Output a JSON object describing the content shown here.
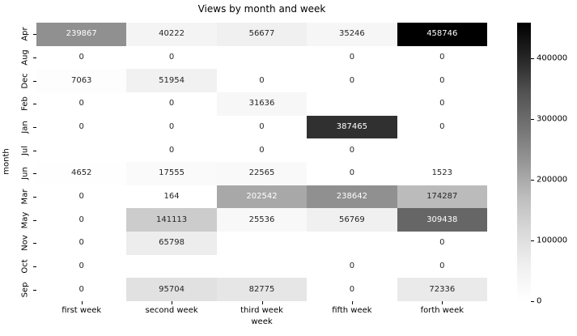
{
  "chart_data": {
    "type": "heatmap",
    "title": "Views by month and week",
    "xlabel": "week",
    "ylabel": "month",
    "columns": [
      "first week",
      "second week",
      "third week",
      "fifth week",
      "forth week"
    ],
    "rows": [
      "Apr",
      "Aug",
      "Dec",
      "Feb",
      "Jan",
      "Jul",
      "Jun",
      "Mar",
      "May",
      "Nov",
      "Oct",
      "Sep"
    ],
    "values": [
      [
        239867,
        40222,
        56677,
        35246,
        458746
      ],
      [
        0,
        0,
        null,
        0,
        0
      ],
      [
        7063,
        51954,
        0,
        0,
        0
      ],
      [
        0,
        0,
        31636,
        null,
        0
      ],
      [
        0,
        0,
        0,
        387465,
        0
      ],
      [
        null,
        0,
        0,
        0,
        null
      ],
      [
        4652,
        17555,
        22565,
        0,
        1523
      ],
      [
        0,
        164,
        202542,
        238642,
        174287
      ],
      [
        0,
        141113,
        25536,
        56769,
        309438
      ],
      [
        0,
        65798,
        null,
        null,
        0
      ],
      [
        0,
        null,
        null,
        0,
        0
      ],
      [
        0,
        95704,
        82775,
        0,
        72336
      ]
    ],
    "vmin": 0,
    "vmax": 458746,
    "colormap": "Greys",
    "colorbar_ticks": [
      0,
      100000,
      200000,
      300000,
      400000
    ],
    "colorbar_position": "right",
    "annotations": true,
    "grid": false,
    "legend": "colorbar"
  },
  "colors": {
    "background": "#ffffff",
    "annot_dark": "#262626",
    "annot_light": "#ffffff",
    "nan_cell": "#ffffff",
    "greys_anchors": [
      "#ffffff",
      "#f0f0f0",
      "#d9d9d9",
      "#bdbdbd",
      "#969696",
      "#737373",
      "#525252",
      "#252525",
      "#000000"
    ]
  }
}
